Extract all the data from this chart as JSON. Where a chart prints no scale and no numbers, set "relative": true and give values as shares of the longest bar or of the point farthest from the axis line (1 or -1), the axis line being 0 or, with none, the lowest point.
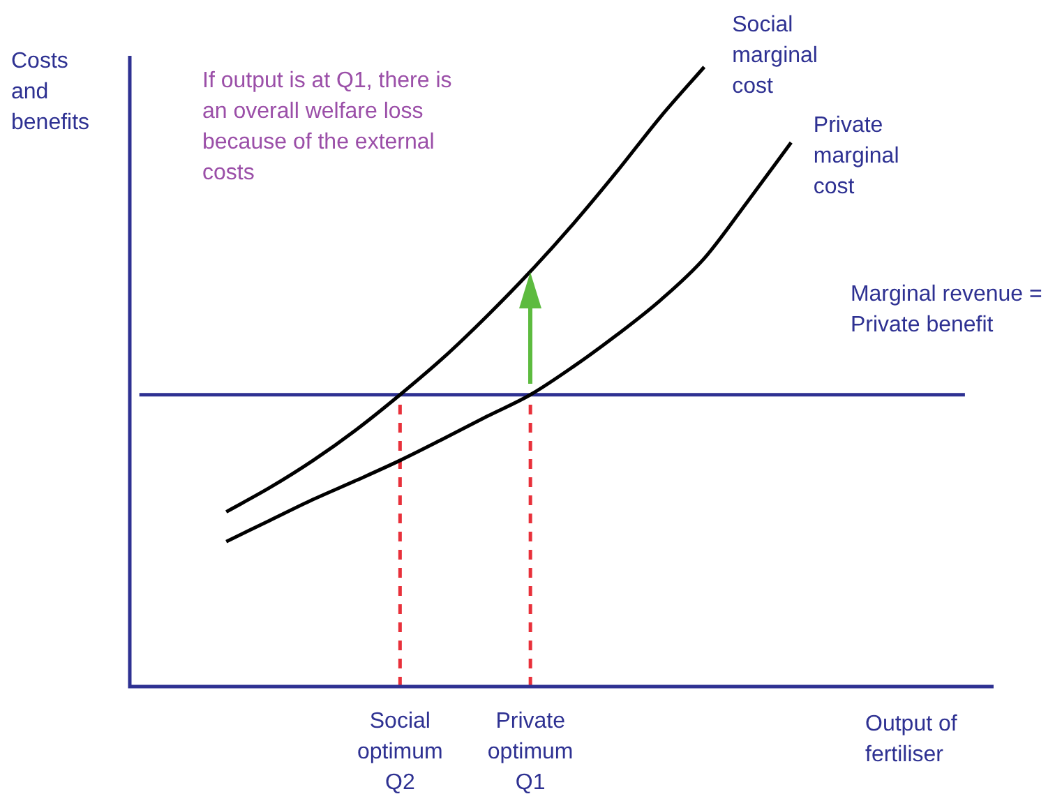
{
  "chart_data": {
    "type": "line",
    "relative": true,
    "ylabel": "Costs and benefits",
    "xlabel": "Output of fertiliser",
    "tick_labels": "x",
    "legend": false,
    "marker": "none",
    "categories": [
      null,
      null,
      null,
      null,
      null,
      null,
      "Social optimum Q2",
      null,
      null,
      "Private optimum Q1",
      null,
      null,
      null,
      null,
      null,
      null,
      null,
      null,
      null,
      null
    ],
    "series": [
      {
        "name": "Social marginal cost",
        "color": "#000000",
        "values": [
          null,
          null,
          0.282,
          0.321,
          0.365,
          0.415,
          0.471,
          0.531,
          0.598,
          0.67,
          0.748,
          0.832,
          0.92,
          1,
          null,
          null,
          null,
          null,
          null,
          null
        ]
      },
      {
        "name": "Private marginal cost",
        "color": "#000000",
        "values": [
          null,
          null,
          0.234,
          0.268,
          0.302,
          0.333,
          0.365,
          0.4,
          0.436,
          0.471,
          0.517,
          0.568,
          0.624,
          0.691,
          0.783,
          0.878,
          null,
          null,
          null,
          null
        ]
      },
      {
        "name": "Marginal revenue = Private benefit",
        "color": "#2e3192",
        "values": [
          0.471,
          0.471,
          0.471,
          0.471,
          0.471,
          0.471,
          0.471,
          0.471,
          0.471,
          0.471,
          0.471,
          0.471,
          0.471,
          0.471,
          0.471,
          0.471,
          0.471,
          0.471,
          0.471,
          0.471
        ]
      }
    ],
    "ref_lines": [
      {
        "axis": "x",
        "value": "Social optimum Q2",
        "color": "#e8303a",
        "line_style": "dashed"
      },
      {
        "axis": "x",
        "value": "Private optimum Q1",
        "color": "#e8303a",
        "line_style": "dashed"
      }
    ],
    "annotations": [
      "If output is at Q1, there is an overall welfare loss because of the external costs"
    ]
  }
}
